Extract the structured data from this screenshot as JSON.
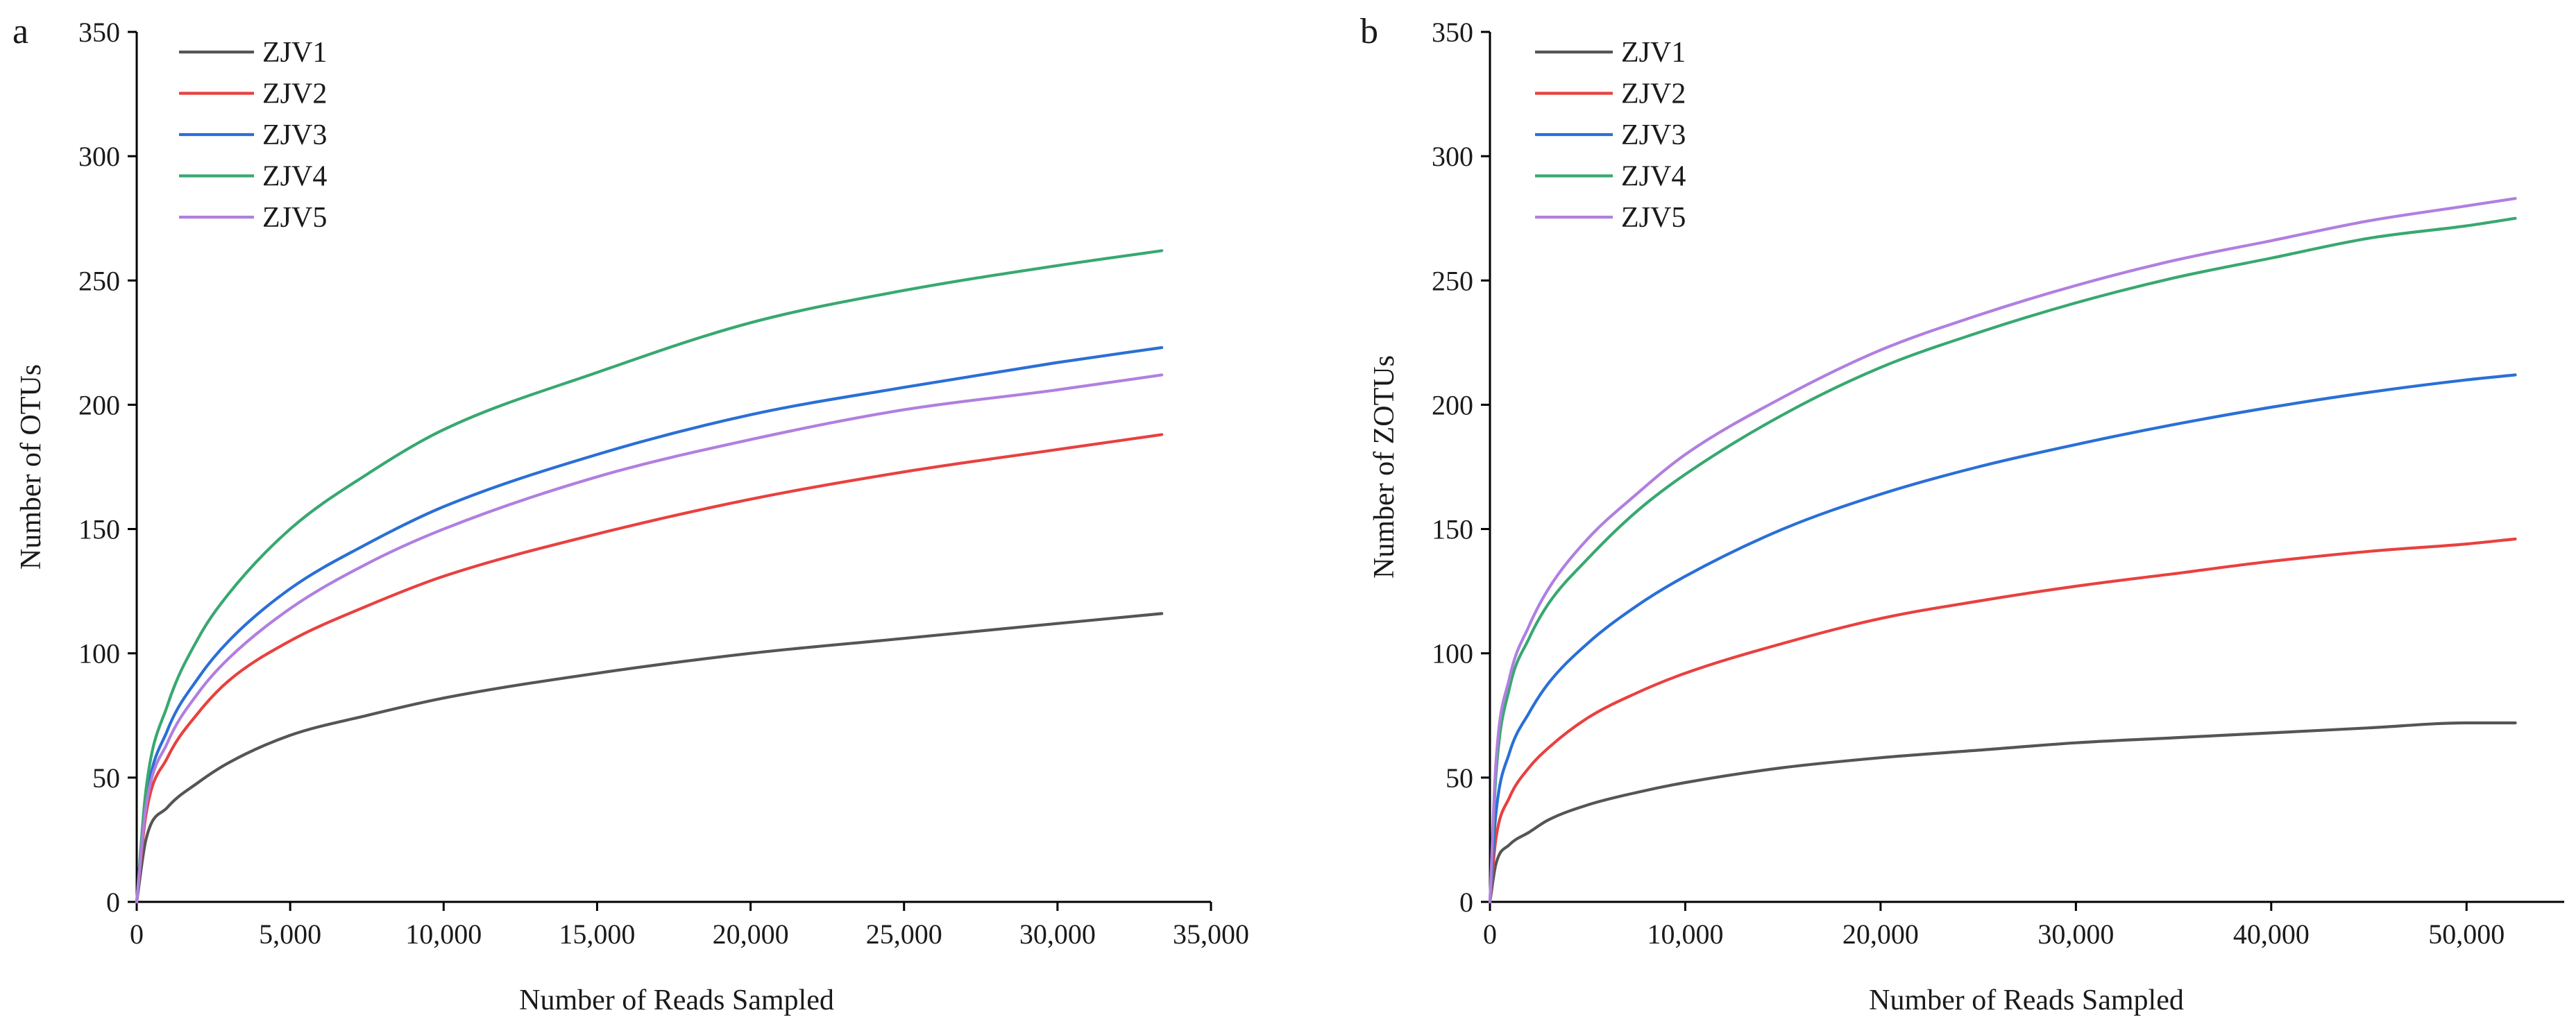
{
  "chart_data": [
    {
      "type": "line",
      "panel_label": "a",
      "title": "",
      "xlabel": "Number of Reads Sampled",
      "ylabel": "Number of OTUs",
      "xlim": [
        0,
        35000
      ],
      "ylim": [
        0,
        350
      ],
      "x_ticks": [
        0,
        5000,
        10000,
        15000,
        20000,
        25000,
        30000,
        35000
      ],
      "x_tick_labels": [
        "0",
        "5,000",
        "10,000",
        "15,000",
        "20,000",
        "25,000",
        "30,000",
        "35,000"
      ],
      "y_ticks": [
        0,
        50,
        100,
        150,
        200,
        250,
        300,
        350
      ],
      "y_tick_labels": [
        "0",
        "50",
        "100",
        "150",
        "200",
        "250",
        "300",
        "350"
      ],
      "grid": false,
      "legend_position": "top-left",
      "x_max_sampled": 33400,
      "series": [
        {
          "name": "ZJV1",
          "color": "#555555",
          "x": [
            0,
            300,
            1000,
            2000,
            3000,
            5000,
            7500,
            10000,
            15000,
            20000,
            25000,
            30000,
            33400
          ],
          "values": [
            0,
            25,
            38,
            48,
            56,
            67,
            75,
            82,
            92,
            100,
            106,
            112,
            116
          ]
        },
        {
          "name": "ZJV2",
          "color": "#e8413f",
          "x": [
            0,
            300,
            1000,
            2000,
            3000,
            5000,
            7500,
            10000,
            15000,
            20000,
            25000,
            30000,
            33400
          ],
          "values": [
            0,
            35,
            58,
            76,
            89,
            105,
            119,
            131,
            148,
            162,
            173,
            182,
            188
          ]
        },
        {
          "name": "ZJV3",
          "color": "#2a6fd6",
          "x": [
            0,
            300,
            1000,
            2000,
            3000,
            5000,
            7500,
            10000,
            15000,
            20000,
            25000,
            30000,
            33400
          ],
          "values": [
            0,
            40,
            69,
            90,
            105,
            126,
            144,
            159,
            180,
            196,
            207,
            217,
            223
          ]
        },
        {
          "name": "ZJV4",
          "color": "#38a870",
          "x": [
            0,
            300,
            1000,
            2000,
            3000,
            5000,
            7500,
            10000,
            15000,
            20000,
            25000,
            30000,
            33400
          ],
          "values": [
            0,
            45,
            79,
            106,
            124,
            150,
            172,
            190,
            213,
            233,
            246,
            256,
            262
          ]
        },
        {
          "name": "ZJV5",
          "color": "#b07fe0",
          "x": [
            0,
            300,
            1000,
            2000,
            3000,
            5000,
            7500,
            10000,
            15000,
            20000,
            25000,
            30000,
            33400
          ],
          "values": [
            0,
            38,
            64,
            84,
            98,
            118,
            136,
            150,
            171,
            186,
            198,
            206,
            212
          ]
        }
      ]
    },
    {
      "type": "line",
      "panel_label": "b",
      "title": "",
      "xlabel": "Number of Reads Sampled",
      "ylabel": "Number of ZOTUs",
      "xlim": [
        0,
        55000
      ],
      "ylim": [
        0,
        350
      ],
      "x_ticks": [
        0,
        10000,
        20000,
        30000,
        40000,
        50000
      ],
      "x_tick_labels": [
        "0",
        "10,000",
        "20,000",
        "30,000",
        "40,000",
        "50,000"
      ],
      "y_ticks": [
        0,
        50,
        100,
        150,
        200,
        250,
        300,
        350
      ],
      "y_tick_labels": [
        "0",
        "50",
        "100",
        "150",
        "200",
        "250",
        "300",
        "350"
      ],
      "grid": false,
      "legend_position": "top-left",
      "x_max_sampled": 52500,
      "series": [
        {
          "name": "ZJV1",
          "color": "#555555",
          "x": [
            0,
            300,
            1000,
            2000,
            3000,
            5000,
            7500,
            10000,
            15000,
            20000,
            25000,
            30000,
            35000,
            40000,
            45000,
            50000,
            52500
          ],
          "values": [
            0,
            15,
            23,
            28,
            33,
            39,
            44,
            48,
            54,
            58,
            61,
            64,
            66,
            68,
            70,
            72,
            72
          ]
        },
        {
          "name": "ZJV2",
          "color": "#e8413f",
          "x": [
            0,
            300,
            1000,
            2000,
            3000,
            5000,
            7500,
            10000,
            15000,
            20000,
            25000,
            30000,
            35000,
            40000,
            45000,
            50000,
            52500
          ],
          "values": [
            0,
            25,
            42,
            54,
            62,
            74,
            84,
            92,
            104,
            114,
            121,
            127,
            132,
            137,
            141,
            144,
            146
          ]
        },
        {
          "name": "ZJV3",
          "color": "#2a6fd6",
          "x": [
            0,
            300,
            1000,
            2000,
            3000,
            5000,
            7500,
            10000,
            15000,
            20000,
            25000,
            30000,
            35000,
            40000,
            45000,
            50000,
            52500
          ],
          "values": [
            0,
            35,
            60,
            76,
            88,
            104,
            119,
            131,
            150,
            164,
            175,
            184,
            192,
            199,
            205,
            210,
            212
          ]
        },
        {
          "name": "ZJV4",
          "color": "#38a870",
          "x": [
            0,
            300,
            1000,
            2000,
            3000,
            5000,
            7500,
            10000,
            15000,
            20000,
            25000,
            30000,
            35000,
            40000,
            45000,
            50000,
            52500
          ],
          "values": [
            0,
            50,
            86,
            106,
            120,
            138,
            157,
            172,
            196,
            215,
            229,
            241,
            251,
            259,
            267,
            272,
            275
          ]
        },
        {
          "name": "ZJV5",
          "color": "#b07fe0",
          "x": [
            0,
            300,
            1000,
            2000,
            3000,
            5000,
            7500,
            10000,
            15000,
            20000,
            25000,
            30000,
            35000,
            40000,
            45000,
            50000,
            52500
          ],
          "values": [
            0,
            55,
            90,
            111,
            126,
            146,
            164,
            180,
            203,
            222,
            236,
            248,
            258,
            266,
            274,
            280,
            283
          ]
        }
      ]
    }
  ]
}
